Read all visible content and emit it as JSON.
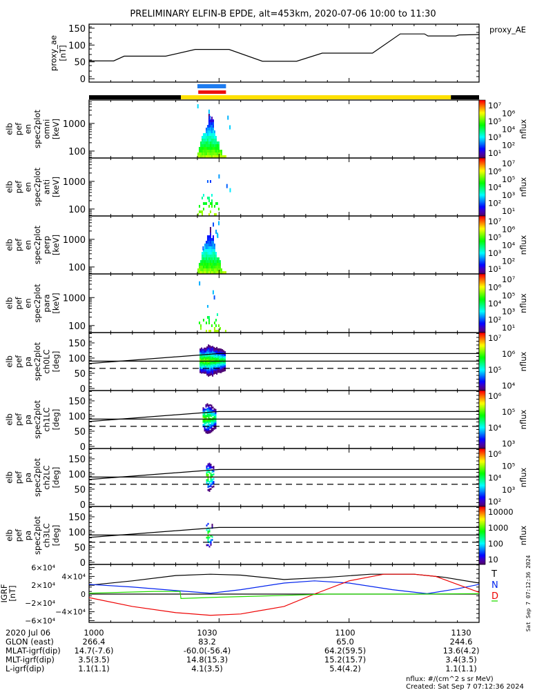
{
  "title": "PRELIMINARY ELFIN-B EPDE, alt=453km, 2020-07-06 10:00 to 11:30",
  "chart_data": [
    {
      "type": "line",
      "id": "proxy_ae",
      "ylabel_lines": [
        "proxy_ae",
        "[nT]"
      ],
      "legend": "proxy_AE",
      "ylim": [
        -10,
        162
      ],
      "yticks": [
        "0",
        "50",
        "100",
        "150"
      ],
      "ytick_values": [
        0,
        50,
        100,
        150
      ],
      "x_minutes": [
        0,
        5.7,
        8.1,
        17.7,
        24.5,
        32.3,
        40,
        47.9,
        53.8,
        65.4,
        71.8,
        77.4,
        78.2,
        84.6,
        85.4,
        90
      ],
      "values": [
        53,
        53,
        67,
        67,
        87,
        87,
        52,
        52,
        76,
        76,
        133,
        133,
        127,
        127,
        130,
        131
      ]
    },
    {
      "type": "bar",
      "id": "orbit_bars",
      "segments": [
        {
          "start_min": 0,
          "end_min": 21.2,
          "color": "#000000"
        },
        {
          "start_min": 21.2,
          "end_min": 83.5,
          "color": "#ffe000"
        },
        {
          "start_min": 83.5,
          "end_min": 90,
          "color": "#000000"
        }
      ],
      "science_zone_blue": {
        "start_min": 25.0,
        "end_min": 31.6,
        "color": "#1e7cf0"
      },
      "science_zone_red": {
        "start_min": 25.2,
        "end_min": 31.6,
        "color": "#ee1010"
      }
    },
    {
      "type": "heatmap",
      "id": "en_omni",
      "kind": "energy",
      "density": 1.0,
      "ylabel_lines": [
        "elb",
        "pef",
        "en",
        "spec2plot",
        "omni",
        "[keV]"
      ],
      "yticks": [
        "100",
        "1000"
      ],
      "ytick_values": [
        100,
        1000
      ],
      "ylim_keV": [
        56,
        7000
      ],
      "colorbar": {
        "label": "nflux",
        "ticks": [
          [
            "10",
            "7"
          ],
          [
            "10",
            "6"
          ],
          [
            "10",
            "5"
          ],
          [
            "10",
            "4"
          ],
          [
            "10",
            "3"
          ],
          [
            "10",
            "2"
          ],
          [
            "10",
            "1"
          ]
        ]
      }
    },
    {
      "type": "heatmap",
      "id": "en_anti",
      "kind": "energy",
      "density": 0.25,
      "ylabel_lines": [
        "elb",
        "pef",
        "en",
        "spec2plot",
        "anti",
        "[keV]"
      ],
      "yticks": [
        "100",
        "1000"
      ],
      "ytick_values": [
        100,
        1000
      ],
      "ylim_keV": [
        56,
        7000
      ],
      "colorbar": {
        "label": "nflux",
        "ticks": [
          [
            "10",
            "7"
          ],
          [
            "10",
            "6"
          ],
          [
            "10",
            "5"
          ],
          [
            "10",
            "4"
          ],
          [
            "10",
            "3"
          ],
          [
            "10",
            "2"
          ],
          [
            "10",
            "1"
          ]
        ]
      }
    },
    {
      "type": "heatmap",
      "id": "en_perp",
      "kind": "energy",
      "density": 1.0,
      "ylabel_lines": [
        "elb",
        "pef",
        "en",
        "spec2plot",
        "perp",
        "[keV]"
      ],
      "yticks": [
        "100",
        "1000"
      ],
      "ytick_values": [
        100,
        1000
      ],
      "ylim_keV": [
        56,
        7000
      ],
      "colorbar": {
        "label": "nflux",
        "ticks": [
          [
            "10",
            "7"
          ],
          [
            "10",
            "6"
          ],
          [
            "10",
            "5"
          ],
          [
            "10",
            "4"
          ],
          [
            "10",
            "3"
          ],
          [
            "10",
            "2"
          ],
          [
            "10",
            "1"
          ]
        ]
      }
    },
    {
      "type": "heatmap",
      "id": "en_para",
      "kind": "energy",
      "density": 0.25,
      "ylabel_lines": [
        "elb",
        "pef",
        "en",
        "spec2plot",
        "para",
        "[keV]"
      ],
      "yticks": [
        "100",
        "1000"
      ],
      "ytick_values": [
        100,
        1000
      ],
      "ylim_keV": [
        56,
        7000
      ],
      "colorbar": {
        "label": "nflux",
        "ticks": [
          [
            "10",
            "7"
          ],
          [
            "10",
            "6"
          ],
          [
            "10",
            "5"
          ],
          [
            "10",
            "4"
          ],
          [
            "10",
            "3"
          ],
          [
            "10",
            "2"
          ],
          [
            "10",
            "1"
          ]
        ]
      }
    },
    {
      "type": "heatmap",
      "id": "pa_ch0",
      "kind": "pa",
      "density": 1.0,
      "span_min": [
        25.5,
        31.5
      ],
      "ylabel_lines": [
        "elb",
        "pef",
        "pa",
        "spec2plot",
        "ch0LC",
        "[deg]"
      ],
      "yticks": [
        "0",
        "50",
        "100",
        "150"
      ],
      "ytick_values": [
        0,
        50,
        100,
        150
      ],
      "ylim_deg": [
        -7,
        184
      ],
      "colorbar": {
        "label": "nflux",
        "ticks": [
          [
            "10",
            "7"
          ],
          [
            "10",
            "6"
          ],
          [
            "10",
            "5"
          ],
          [
            "10",
            "4"
          ]
        ]
      }
    },
    {
      "type": "heatmap",
      "id": "pa_ch1",
      "kind": "pa",
      "density": 0.7,
      "span_min": [
        26.2,
        29.2
      ],
      "ylabel_lines": [
        "elb",
        "pef",
        "pa",
        "spec2plot",
        "ch1LC",
        "[deg]"
      ],
      "yticks": [
        "0",
        "50",
        "100",
        "150"
      ],
      "ytick_values": [
        0,
        50,
        100,
        150
      ],
      "ylim_deg": [
        -7,
        184
      ],
      "colorbar": {
        "label": "nflux",
        "ticks": [
          [
            "10",
            "6"
          ],
          [
            "10",
            "5"
          ],
          [
            "10",
            "4"
          ],
          [
            "10",
            "3"
          ]
        ]
      }
    },
    {
      "type": "heatmap",
      "id": "pa_ch2",
      "kind": "pa",
      "density": 0.6,
      "span_min": [
        27.0,
        28.8
      ],
      "ylabel_lines": [
        "elb",
        "pef",
        "pa",
        "spec2plot",
        "ch2LC",
        "[deg]"
      ],
      "yticks": [
        "0",
        "50",
        "100",
        "150"
      ],
      "ytick_values": [
        0,
        50,
        100,
        150
      ],
      "ylim_deg": [
        -7,
        184
      ],
      "colorbar": {
        "label": "nflux",
        "ticks": [
          [
            "10",
            "6"
          ],
          [
            "10",
            "5"
          ],
          [
            "10",
            "4"
          ],
          [
            "10",
            "3"
          ],
          [
            "10",
            "2"
          ]
        ]
      }
    },
    {
      "type": "heatmap",
      "id": "pa_ch3",
      "kind": "pa",
      "density": 0.25,
      "span_min": [
        27.0,
        28.4
      ],
      "ylabel_lines": [
        "elb",
        "pef",
        "pa",
        "spec2plot",
        "ch3LC",
        "[deg]"
      ],
      "yticks": [
        "0",
        "50",
        "100",
        "150"
      ],
      "ytick_values": [
        0,
        50,
        100,
        150
      ],
      "ylim_deg": [
        -7,
        184
      ],
      "colorbar": {
        "label": "nflux",
        "ticks": [
          [
            "10000"
          ],
          [
            "1000"
          ],
          [
            "100"
          ],
          [
            "10"
          ]
        ]
      }
    },
    {
      "type": "line",
      "id": "igrf",
      "ylabel_lines": [
        "IGRF",
        "[nT]"
      ],
      "ylim": [
        -70000,
        70000
      ],
      "yticks": [
        [
          "6×10",
          "4"
        ],
        [
          "4×10",
          "4"
        ],
        [
          "2×10",
          "4"
        ],
        [
          "0"
        ],
        [
          "−2×10",
          "4"
        ],
        [
          "−4×10",
          "4"
        ],
        [
          "−6×10",
          "4"
        ]
      ],
      "ytick_values": [
        60000,
        40000,
        20000,
        0,
        -20000,
        -40000,
        -60000
      ],
      "legend": [
        "T",
        "N",
        "D"
      ],
      "series": [
        {
          "name": "T",
          "color": "#000000",
          "x_minutes": [
            0,
            10,
            20,
            28,
            35,
            45,
            55,
            65,
            75,
            82,
            90
          ],
          "values": [
            20000,
            30000,
            42000,
            45000,
            43000,
            33000,
            38000,
            45000,
            45000,
            38000,
            25000
          ]
        },
        {
          "name": "N",
          "color": "#0022ee",
          "x_minutes": [
            0,
            10,
            20,
            28,
            35,
            45,
            52,
            60,
            70,
            78,
            85,
            90
          ],
          "values": [
            22000,
            16000,
            8000,
            2000,
            10000,
            25000,
            30000,
            25000,
            10000,
            1000,
            12000,
            22000
          ]
        },
        {
          "name": "D",
          "color": "#ee0000",
          "x_minutes": [
            0,
            10,
            20,
            28,
            35,
            45,
            52,
            60,
            68,
            75,
            80,
            85,
            90
          ],
          "values": [
            -8000,
            -28000,
            -42000,
            -48000,
            -45000,
            -28000,
            0,
            30000,
            45000,
            45000,
            40000,
            22000,
            4000
          ]
        },
        {
          "name": "green",
          "color": "#22dd00",
          "x_minutes": [
            0,
            15,
            21,
            21.2,
            30,
            45,
            55,
            75,
            90
          ],
          "values": [
            2000,
            6000,
            6000,
            -10000,
            -7000,
            -3000,
            0,
            0,
            1000
          ]
        }
      ]
    }
  ],
  "created_stamp": "Sat Sep  7 07:12:36 2024",
  "footer": {
    "rows": [
      {
        "label": "2020 Jul 06",
        "values": [
          "1000",
          "1030",
          "1100",
          "1130"
        ]
      },
      {
        "label": "GLON (east)",
        "values": [
          "266.4",
          "83.2",
          "65.0",
          "244.6"
        ]
      },
      {
        "label": "MLAT-igrf(dip)",
        "values": [
          "14.7(-7.6)",
          "-60.0(-56.4)",
          "64.2(59.5)",
          "13.6(4.2)"
        ]
      },
      {
        "label": "MLT-igrf(dip)",
        "values": [
          "3.5(3.5)",
          "14.8(15.3)",
          "15.2(15.7)",
          "3.4(3.5)"
        ]
      },
      {
        "label": "L-igrf(dip)",
        "values": [
          "1.1(1.1)",
          "4.1(3.5)",
          "5.4(4.2)",
          "1.1(1.1)"
        ]
      }
    ],
    "units_note": "nflux: #/(cm^2 s sr MeV)",
    "created": "Created: Sat Sep  7 07:12:36 2024"
  }
}
